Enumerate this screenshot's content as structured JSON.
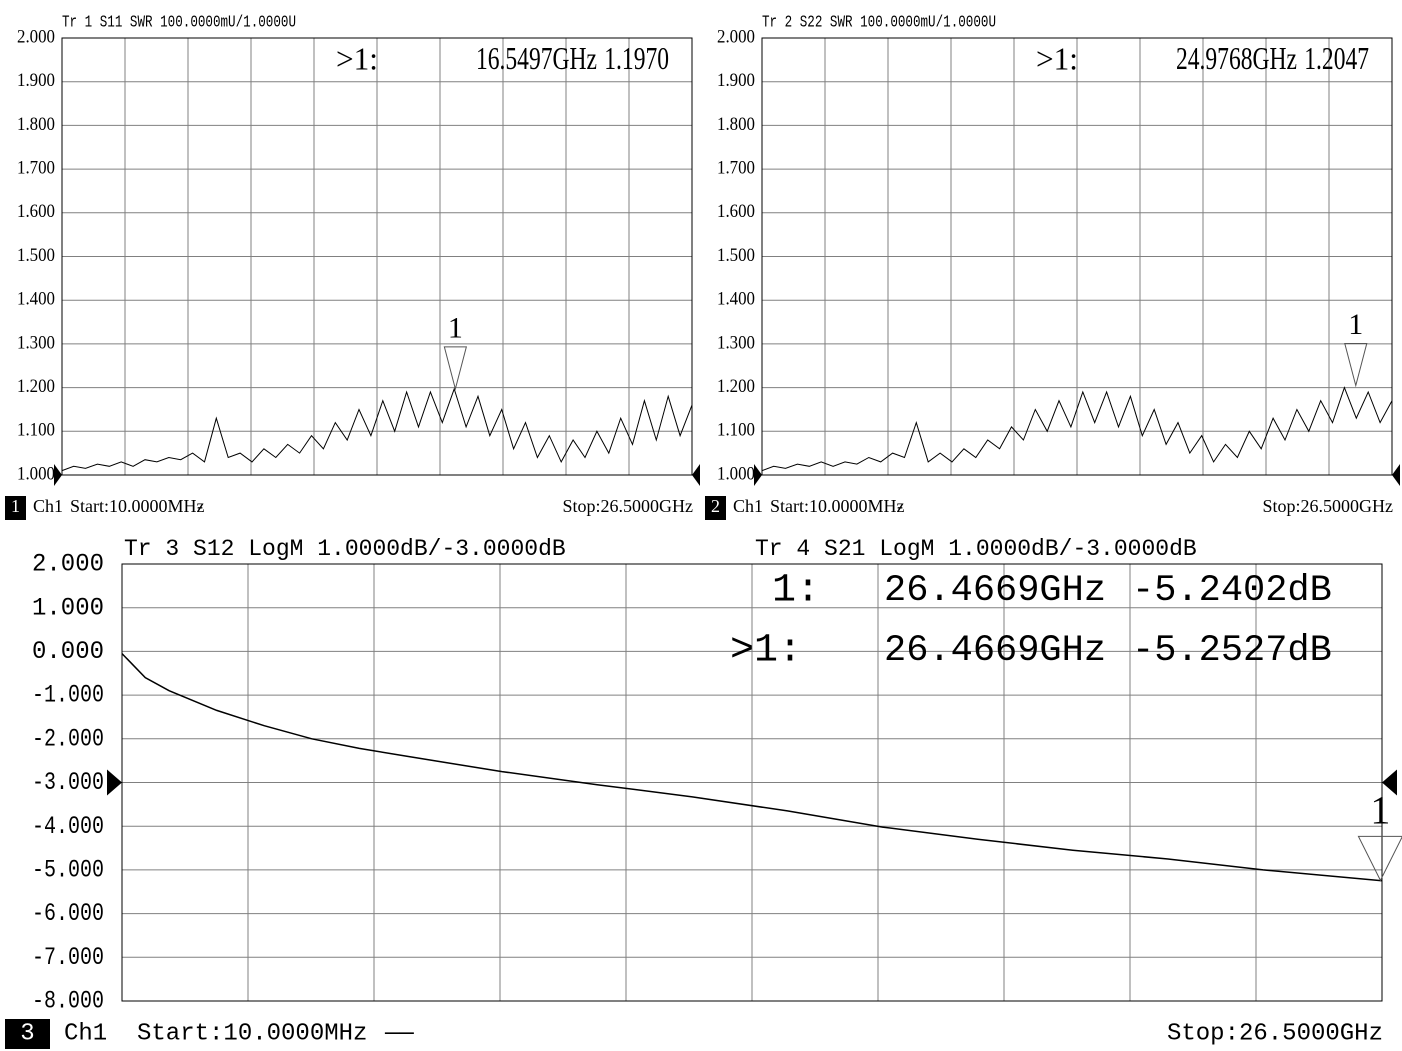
{
  "chart_data": [
    {
      "type": "line",
      "title": "Tr 1  S11 SWR 100.0000mU/1.0000U",
      "xlim": [
        0.01,
        26.5
      ],
      "ylim": [
        1,
        2
      ],
      "ref": 1,
      "yticks": [
        {
          "value": 2,
          "label": "2.000"
        },
        {
          "value": 1.9,
          "label": "1.900"
        },
        {
          "value": 1.8,
          "label": "1.800"
        },
        {
          "value": 1.7,
          "label": "1.700"
        },
        {
          "value": 1.6,
          "label": "1.600"
        },
        {
          "value": 1.5,
          "label": "1.500"
        },
        {
          "value": 1.4,
          "label": "1.400"
        },
        {
          "value": 1.3,
          "label": "1.300"
        },
        {
          "value": 1.2,
          "label": "1.200"
        },
        {
          "value": 1.1,
          "label": "1.100"
        },
        {
          "value": 1,
          "label": "1.000"
        }
      ],
      "x": [
        0.01,
        0.5,
        1,
        1.5,
        2,
        2.5,
        3,
        3.5,
        4,
        4.5,
        5,
        5.5,
        6,
        6.5,
        7,
        7.5,
        8,
        8.5,
        9,
        9.5,
        10,
        10.5,
        11,
        11.5,
        12,
        12.5,
        13,
        13.5,
        14,
        14.5,
        15,
        15.5,
        16,
        16.5,
        17,
        17.5,
        18,
        18.5,
        19,
        19.5,
        20,
        20.5,
        21,
        21.5,
        22,
        22.5,
        23,
        23.5,
        24,
        24.5,
        25,
        25.5,
        26,
        26.5
      ],
      "series": [
        {
          "color": "#000000",
          "values": [
            1.01,
            1.02,
            1.015,
            1.025,
            1.02,
            1.03,
            1.02,
            1.035,
            1.03,
            1.04,
            1.035,
            1.05,
            1.03,
            1.13,
            1.04,
            1.05,
            1.03,
            1.06,
            1.04,
            1.07,
            1.05,
            1.09,
            1.06,
            1.12,
            1.08,
            1.15,
            1.09,
            1.17,
            1.1,
            1.19,
            1.11,
            1.19,
            1.12,
            1.197,
            1.11,
            1.18,
            1.09,
            1.15,
            1.06,
            1.12,
            1.04,
            1.09,
            1.03,
            1.08,
            1.04,
            1.1,
            1.05,
            1.13,
            1.07,
            1.17,
            1.08,
            1.18,
            1.09,
            1.16
          ]
        }
      ],
      "markers": [
        {
          "name": "1",
          "readout": ">1:",
          "x": 16.5497,
          "x_label": "16.5497GHz",
          "value": 1.197,
          "value_label": "1.1970"
        }
      ],
      "footer": {
        "channel_badge": "1",
        "channel": "Ch1",
        "start": "Start:10.0000MHz",
        "sweep": "-",
        "stop": "Stop:26.5000GHz"
      }
    },
    {
      "type": "line",
      "title": "Tr 2  S22 SWR 100.0000mU/1.0000U",
      "xlim": [
        0.01,
        26.5
      ],
      "ylim": [
        1,
        2
      ],
      "ref": 1,
      "yticks": [
        {
          "value": 2,
          "label": "2.000"
        },
        {
          "value": 1.9,
          "label": "1.900"
        },
        {
          "value": 1.8,
          "label": "1.800"
        },
        {
          "value": 1.7,
          "label": "1.700"
        },
        {
          "value": 1.6,
          "label": "1.600"
        },
        {
          "value": 1.5,
          "label": "1.500"
        },
        {
          "value": 1.4,
          "label": "1.400"
        },
        {
          "value": 1.3,
          "label": "1.300"
        },
        {
          "value": 1.2,
          "label": "1.200"
        },
        {
          "value": 1.1,
          "label": "1.100"
        },
        {
          "value": 1,
          "label": "1.000"
        }
      ],
      "x": [
        0.01,
        0.5,
        1,
        1.5,
        2,
        2.5,
        3,
        3.5,
        4,
        4.5,
        5,
        5.5,
        6,
        6.5,
        7,
        7.5,
        8,
        8.5,
        9,
        9.5,
        10,
        10.5,
        11,
        11.5,
        12,
        12.5,
        13,
        13.5,
        14,
        14.5,
        15,
        15.5,
        16,
        16.5,
        17,
        17.5,
        18,
        18.5,
        19,
        19.5,
        20,
        20.5,
        21,
        21.5,
        22,
        22.5,
        23,
        23.5,
        24,
        24.5,
        25,
        25.5,
        26,
        26.5
      ],
      "series": [
        {
          "color": "#000000",
          "values": [
            1.01,
            1.02,
            1.015,
            1.025,
            1.02,
            1.03,
            1.02,
            1.03,
            1.025,
            1.04,
            1.03,
            1.05,
            1.04,
            1.12,
            1.03,
            1.05,
            1.03,
            1.06,
            1.04,
            1.08,
            1.06,
            1.11,
            1.08,
            1.15,
            1.1,
            1.17,
            1.11,
            1.19,
            1.12,
            1.19,
            1.11,
            1.18,
            1.09,
            1.15,
            1.07,
            1.12,
            1.05,
            1.09,
            1.03,
            1.07,
            1.04,
            1.1,
            1.06,
            1.13,
            1.08,
            1.15,
            1.1,
            1.17,
            1.12,
            1.2,
            1.13,
            1.19,
            1.12,
            1.17
          ]
        }
      ],
      "markers": [
        {
          "name": "1",
          "readout": ">1:",
          "x": 24.9768,
          "x_label": "24.9768GHz",
          "value": 1.2047,
          "value_label": "1.2047"
        }
      ],
      "footer": {
        "channel_badge": "2",
        "channel": "Ch1",
        "start": "Start:10.0000MHz",
        "sweep": "-",
        "stop": "Stop:26.5000GHz"
      }
    },
    {
      "type": "line",
      "titles": [
        "Tr 3  S12 LogM 1.0000dB/-3.0000dB",
        "Tr 4  S21 LogM 1.0000dB/-3.0000dB"
      ],
      "xlim": [
        0.01,
        26.5
      ],
      "ylim": [
        -8,
        2
      ],
      "ref": -3,
      "yticks": [
        {
          "value": 2,
          "label": "2.000"
        },
        {
          "value": 1,
          "label": "1.000"
        },
        {
          "value": 0,
          "label": "0.000"
        },
        {
          "value": -1,
          "label": "-1.000"
        },
        {
          "value": -2,
          "label": "-2.000"
        },
        {
          "value": -3,
          "label": "-3.000"
        },
        {
          "value": -4,
          "label": "-4.000"
        },
        {
          "value": -5,
          "label": "-5.000"
        },
        {
          "value": -6,
          "label": "-6.000"
        },
        {
          "value": -7,
          "label": "-7.000"
        },
        {
          "value": -8,
          "label": "-8.000"
        }
      ],
      "x": [
        0.01,
        0.5,
        1,
        2,
        3,
        4,
        5,
        6,
        8,
        10,
        12,
        14,
        16,
        18,
        20,
        22,
        24,
        26.5
      ],
      "series": [
        {
          "color": "#000000",
          "values": [
            -0.05,
            -0.6,
            -0.9,
            -1.35,
            -1.7,
            -2.0,
            -2.22,
            -2.4,
            -2.75,
            -3.05,
            -3.33,
            -3.65,
            -4.02,
            -4.3,
            -4.55,
            -4.75,
            -5.0,
            -5.25
          ]
        }
      ],
      "markers": [
        {
          "name": "1",
          "readout": "1:",
          "x": 26.4669,
          "x_label": "26.4669GHz",
          "value": -5.2402,
          "value_label": "-5.2402dB"
        },
        {
          "readout": ">1:",
          "x": 26.4669,
          "x_label": "26.4669GHz",
          "value": -5.2527,
          "value_label": "-5.2527dB"
        }
      ],
      "footer": {
        "channel_badge": "3",
        "channel": "Ch1",
        "start": "Start:10.0000MHz",
        "sweep": "——",
        "stop": "Stop:26.5000GHz"
      }
    }
  ]
}
